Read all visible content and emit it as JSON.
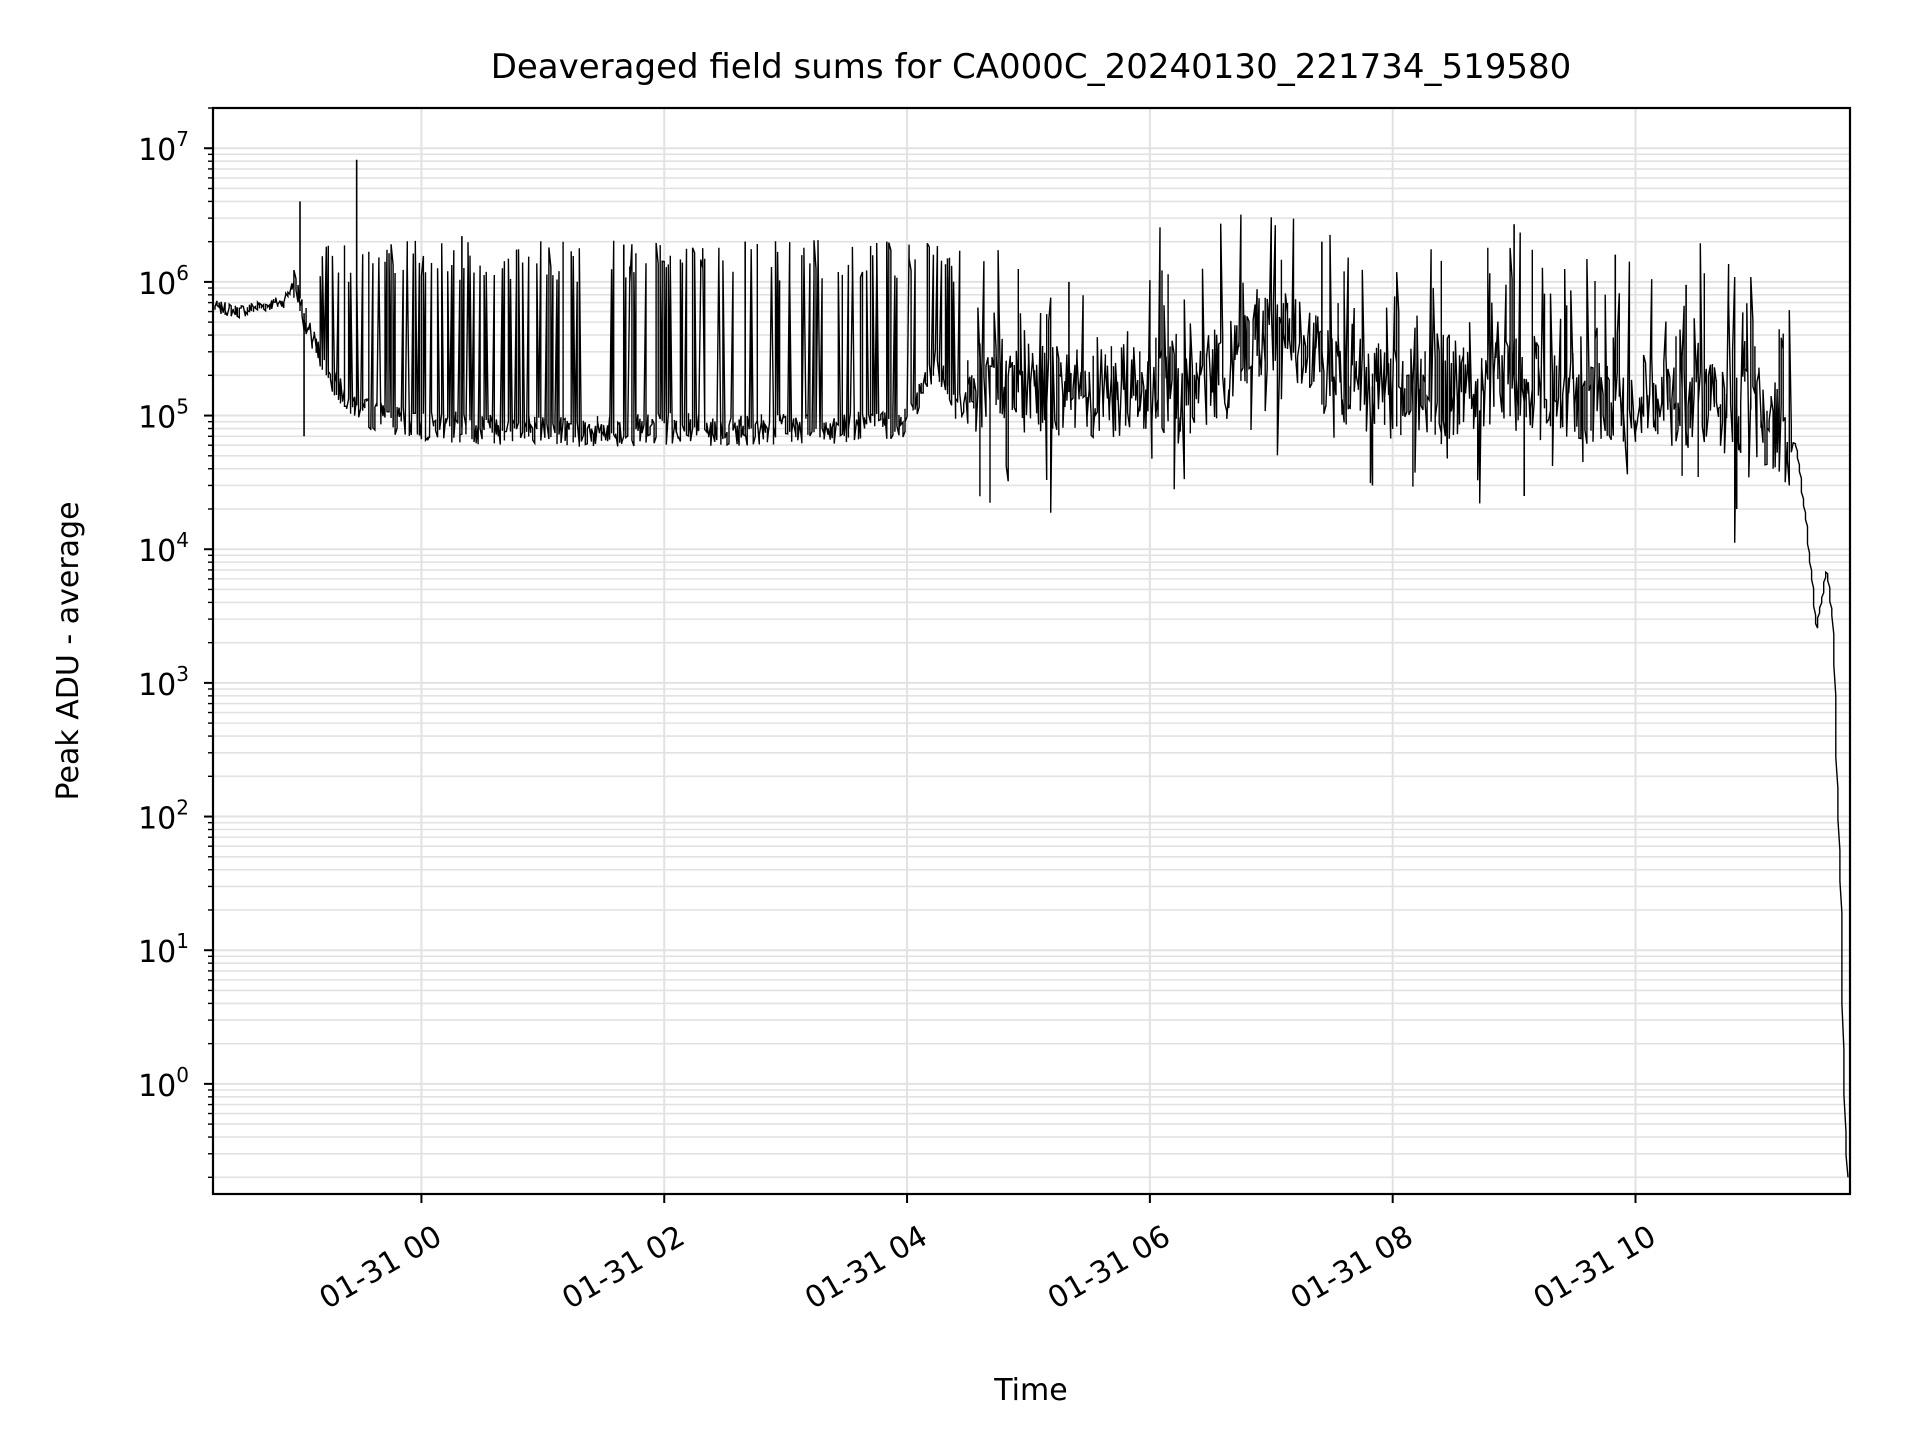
{
  "chart_data": {
    "type": "line",
    "title": "Deaveraged field sums for CA000C_20240130_221734_519580",
    "xlabel": "Time",
    "ylabel": "Peak ADU - average",
    "yscale": "log",
    "ylim": [
      0.15,
      20000000
    ],
    "xlim": [
      "2024-01-30 22:17",
      "2024-01-31 11:46"
    ],
    "grid": "major and minor",
    "line_color": "#000000",
    "x_ticks": [
      {
        "value": "2024-01-31 00:00",
        "label": "01-31 00"
      },
      {
        "value": "2024-01-31 02:00",
        "label": "01-31 02"
      },
      {
        "value": "2024-01-31 04:00",
        "label": "01-31 04"
      },
      {
        "value": "2024-01-31 06:00",
        "label": "01-31 06"
      },
      {
        "value": "2024-01-31 08:00",
        "label": "01-31 08"
      },
      {
        "value": "2024-01-31 10:00",
        "label": "01-31 10"
      }
    ],
    "y_ticks": [
      {
        "value": 1,
        "base": "10",
        "exp": "0"
      },
      {
        "value": 10,
        "base": "10",
        "exp": "1"
      },
      {
        "value": 100,
        "base": "10",
        "exp": "2"
      },
      {
        "value": 1000,
        "base": "10",
        "exp": "3"
      },
      {
        "value": 10000,
        "base": "10",
        "exp": "4"
      },
      {
        "value": 100000,
        "base": "10",
        "exp": "5"
      },
      {
        "value": 1000000,
        "base": "10",
        "exp": "6"
      },
      {
        "value": 10000000,
        "base": "10",
        "exp": "7"
      }
    ],
    "series": [
      {
        "x": [
          "2024-01-30 22:18",
          "2024-01-30 22:30",
          "2024-01-30 22:45",
          "2024-01-30 22:52",
          "2024-01-30 22:58",
          "2024-01-30 23:00",
          "2024-01-30 23:05",
          "2024-01-30 23:15",
          "2024-01-30 23:30",
          "2024-01-30 23:45",
          "2024-01-31 00:00",
          "2024-01-31 00:30",
          "2024-01-31 01:00",
          "2024-01-31 01:30",
          "2024-01-31 02:00",
          "2024-01-31 02:30",
          "2024-01-31 03:00",
          "2024-01-31 03:30",
          "2024-01-31 04:00",
          "2024-01-31 04:15",
          "2024-01-31 04:25",
          "2024-01-31 04:45",
          "2024-01-31 05:00",
          "2024-01-31 05:30",
          "2024-01-31 06:00",
          "2024-01-31 06:30",
          "2024-01-31 07:00",
          "2024-01-31 07:15",
          "2024-01-31 07:30",
          "2024-01-31 08:00",
          "2024-01-31 08:30",
          "2024-01-31 09:00",
          "2024-01-31 09:30",
          "2024-01-31 10:00",
          "2024-01-31 10:30",
          "2024-01-31 11:00",
          "2024-01-31 11:20",
          "2024-01-31 11:25",
          "2024-01-31 11:30",
          "2024-01-31 11:35",
          "2024-01-31 11:38",
          "2024-01-31 11:42",
          "2024-01-31 11:44",
          "2024-01-31 11:45"
        ],
        "y": [
          650000,
          600000,
          680000,
          700000,
          1000000,
          750000,
          400000,
          200000,
          110000,
          90000,
          85000,
          80000,
          80000,
          75000,
          80000,
          78000,
          80000,
          80000,
          90000,
          250000,
          110000,
          200000,
          150000,
          150000,
          160000,
          180000,
          500000,
          350000,
          200000,
          150000,
          140000,
          200000,
          140000,
          130000,
          120000,
          110000,
          60000,
          15000,
          2500,
          7000,
          3000,
          20,
          0.5,
          0.2
        ]
      }
    ],
    "spikes": [
      {
        "x": "2024-01-30 23:00",
        "y": 4000000
      },
      {
        "x": "2024-01-30 23:02",
        "y": 70000
      },
      {
        "x": "2024-01-30 23:28",
        "y": 8200000
      },
      {
        "x": "2024-01-31 00:20",
        "y": 2200000
      },
      {
        "x": "2024-01-31 01:40",
        "y": 1900000
      },
      {
        "x": "2024-01-31 02:40",
        "y": 2000000
      },
      {
        "x": "2024-01-31 03:50",
        "y": 2000000
      },
      {
        "x": "2024-01-31 04:20",
        "y": 1500000
      },
      {
        "x": "2024-01-31 05:20",
        "y": 1000000
      },
      {
        "x": "2024-01-31 07:25",
        "y": 2000000
      },
      {
        "x": "2024-01-31 07:50",
        "y": 30000
      },
      {
        "x": "2024-01-31 09:00",
        "y": 2700000
      },
      {
        "x": "2024-01-31 09:05",
        "y": 25000
      },
      {
        "x": "2024-01-31 09:50",
        "y": 1600000
      },
      {
        "x": "2024-01-31 10:25",
        "y": 950000
      },
      {
        "x": "2024-01-31 10:50",
        "y": 20000
      }
    ]
  }
}
